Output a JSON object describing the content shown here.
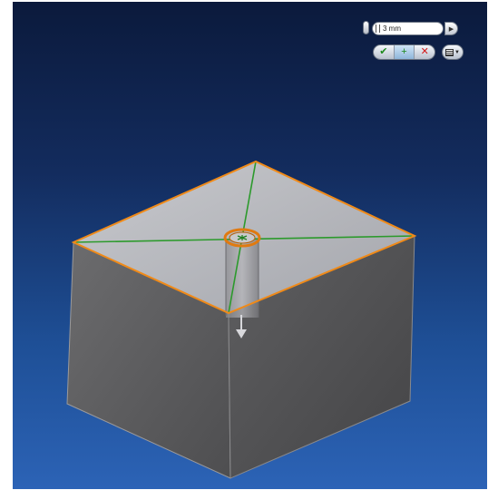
{
  "mini_toolbar": {
    "distance_value": "3 mm",
    "arrow_glyph": "▶",
    "ok_glyph": "✔",
    "apply_glyph": "+",
    "cancel_glyph": "✕",
    "options_glyph": "▼"
  },
  "icons": {
    "options": "list-options-icon",
    "direction": "direction-arrow-icon"
  },
  "colors": {
    "edge_highlight": "#f08a18",
    "diagonal_sketch": "#2c9a2c",
    "hole_ring": "#e07a10"
  }
}
